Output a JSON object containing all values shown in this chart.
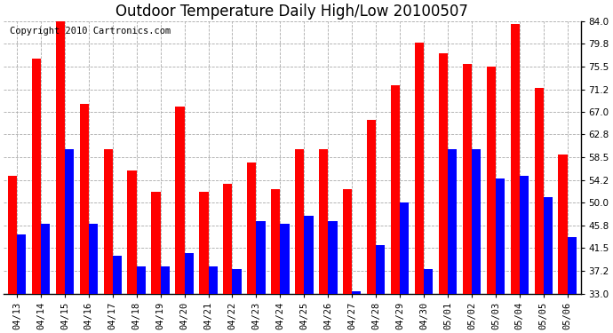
{
  "title": "Outdoor Temperature Daily High/Low 20100507",
  "copyright": "Copyright 2010 Cartronics.com",
  "yticks": [
    33.0,
    37.2,
    41.5,
    45.8,
    50.0,
    54.2,
    58.5,
    62.8,
    67.0,
    71.2,
    75.5,
    79.8,
    84.0
  ],
  "ylim": [
    33.0,
    84.0
  ],
  "dates": [
    "04/13",
    "04/14",
    "04/15",
    "04/16",
    "04/17",
    "04/18",
    "04/19",
    "04/20",
    "04/21",
    "04/22",
    "04/23",
    "04/24",
    "04/25",
    "04/26",
    "04/27",
    "04/28",
    "04/29",
    "04/30",
    "05/01",
    "05/02",
    "05/03",
    "05/04",
    "05/05",
    "05/06"
  ],
  "highs": [
    55.0,
    77.0,
    84.0,
    68.5,
    60.0,
    56.0,
    52.0,
    68.0,
    52.0,
    53.5,
    57.5,
    52.5,
    60.0,
    60.0,
    52.5,
    65.5,
    72.0,
    80.0,
    78.0,
    76.0,
    75.5,
    83.5,
    71.5,
    59.0
  ],
  "lows": [
    44.0,
    46.0,
    60.0,
    46.0,
    40.0,
    38.0,
    38.0,
    40.5,
    38.0,
    37.5,
    46.5,
    46.0,
    47.5,
    46.5,
    33.5,
    42.0,
    50.0,
    37.5,
    60.0,
    60.0,
    54.5,
    55.0,
    51.0,
    43.5
  ],
  "high_color": "#ff0000",
  "low_color": "#0000ff",
  "bg_color": "#ffffff",
  "grid_color": "#aaaaaa",
  "bar_width": 0.38,
  "title_fontsize": 12,
  "tick_fontsize": 7.5,
  "copyright_fontsize": 7.5,
  "ybase": 33.0
}
